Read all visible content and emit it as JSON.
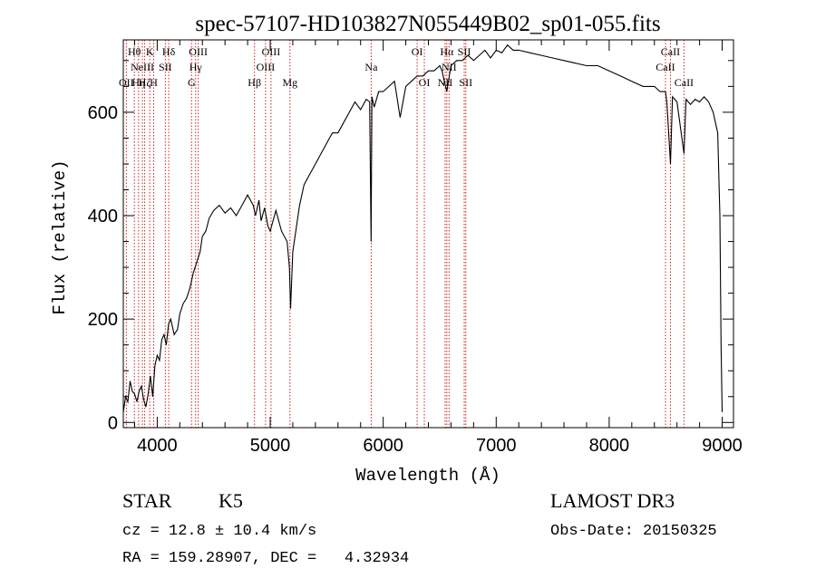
{
  "title": "spec-57107-HD103827N055449B02_sp01-055.fits",
  "info": {
    "object_class": "STAR",
    "subclass": "K5",
    "cz": "cz = 12.8 ± 10.4 km/s",
    "radec": "RA = 159.28907, DEC =   4.32934",
    "survey": "LAMOST DR3",
    "obs_date": "Obs-Date: 20150325"
  },
  "colors": {
    "line_marker": "#cc2222",
    "spectrum": "#000000",
    "axes": "#000000"
  },
  "chart_data": {
    "type": "line",
    "title": "spec-57107-HD103827N055449B02_sp01-055.fits",
    "xlabel": "Wavelength (Å)",
    "ylabel": "Flux (relative)",
    "xlim": [
      3700,
      9100
    ],
    "ylim": [
      -10,
      740
    ],
    "xticks": [
      4000,
      5000,
      6000,
      7000,
      8000,
      9000
    ],
    "yticks": [
      0,
      200,
      400,
      600
    ],
    "series": [
      {
        "x": [
          3700,
          3720,
          3740,
          3760,
          3780,
          3800,
          3820,
          3840,
          3860,
          3880,
          3900,
          3920,
          3940,
          3960,
          3980,
          4000,
          4020,
          4040,
          4060,
          4080,
          4100,
          4120,
          4150,
          4180,
          4200,
          4230,
          4260,
          4290,
          4320,
          4350,
          4380,
          4400,
          4430,
          4460,
          4500,
          4550,
          4600,
          4650,
          4700,
          4750,
          4800,
          4850,
          4870,
          4900,
          4920,
          4950,
          4980,
          5000,
          5050,
          5100,
          5150,
          5170,
          5180,
          5200,
          5220,
          5260,
          5300,
          5350,
          5400,
          5450,
          5500,
          5550,
          5600,
          5650,
          5700,
          5750,
          5800,
          5850,
          5880,
          5893,
          5900,
          5920,
          5960,
          6000,
          6050,
          6100,
          6150,
          6200,
          6250,
          6300,
          6350,
          6400,
          6450,
          6500,
          6520,
          6563,
          6600,
          6650,
          6700,
          6750,
          6800,
          6850,
          6900,
          6950,
          7000,
          7050,
          7100,
          7150,
          7200,
          7300,
          7400,
          7500,
          7600,
          7700,
          7800,
          7900,
          8000,
          8100,
          8200,
          8300,
          8400,
          8450,
          8498,
          8510,
          8542,
          8560,
          8600,
          8662,
          8680,
          8720,
          8760,
          8800,
          8840,
          8880,
          8920,
          8960,
          8980,
          8990,
          9000
        ],
        "y": [
          20,
          50,
          40,
          80,
          60,
          55,
          40,
          60,
          70,
          45,
          30,
          55,
          90,
          50,
          110,
          130,
          120,
          160,
          170,
          150,
          190,
          200,
          170,
          180,
          210,
          230,
          240,
          260,
          290,
          310,
          330,
          360,
          370,
          395,
          410,
          420,
          405,
          415,
          400,
          420,
          440,
          420,
          400,
          430,
          390,
          415,
          380,
          370,
          410,
          370,
          350,
          300,
          220,
          330,
          360,
          420,
          460,
          480,
          500,
          520,
          540,
          560,
          560,
          580,
          600,
          620,
          605,
          625,
          620,
          350,
          630,
          610,
          640,
          640,
          650,
          660,
          590,
          650,
          660,
          670,
          670,
          680,
          680,
          690,
          680,
          640,
          690,
          700,
          700,
          710,
          700,
          710,
          720,
          705,
          720,
          715,
          730,
          720,
          720,
          715,
          710,
          705,
          700,
          695,
          690,
          690,
          680,
          670,
          660,
          650,
          650,
          640,
          640,
          620,
          500,
          630,
          620,
          520,
          625,
          615,
          625,
          620,
          630,
          620,
          600,
          560,
          400,
          150,
          20
        ]
      }
    ],
    "line_markers": [
      {
        "x": 3727,
        "label": "OII",
        "row": 2
      },
      {
        "x": 3798,
        "label": "Hθ",
        "row": 0
      },
      {
        "x": 3835,
        "label": "Hη",
        "row": 2
      },
      {
        "x": 3869,
        "label": "NeIII",
        "row": 1
      },
      {
        "x": 3889,
        "label": "Hζ",
        "row": 2
      },
      {
        "x": 3934,
        "label": "K",
        "row": 0
      },
      {
        "x": 3969,
        "label": "H",
        "row": 2
      },
      {
        "x": 4072,
        "label": "SII",
        "row": 1
      },
      {
        "x": 4102,
        "label": "Hδ",
        "row": 0
      },
      {
        "x": 4304,
        "label": "G",
        "row": 2
      },
      {
        "x": 4340,
        "label": "Hγ",
        "row": 1
      },
      {
        "x": 4363,
        "label": "OIII",
        "row": 0
      },
      {
        "x": 4861,
        "label": "Hβ",
        "row": 2
      },
      {
        "x": 4959,
        "label": "OIII",
        "row": 1
      },
      {
        "x": 5007,
        "label": "OIII",
        "row": 0
      },
      {
        "x": 5175,
        "label": "Mg",
        "row": 2
      },
      {
        "x": 5894,
        "label": "Na",
        "row": 1
      },
      {
        "x": 6300,
        "label": "OI",
        "row": 0
      },
      {
        "x": 6364,
        "label": "OI",
        "row": 2
      },
      {
        "x": 6548,
        "label": "NII",
        "row": 2
      },
      {
        "x": 6563,
        "label": "Hα",
        "row": 0
      },
      {
        "x": 6583,
        "label": "NII",
        "row": 1
      },
      {
        "x": 6717,
        "label": "SII",
        "row": 0
      },
      {
        "x": 6731,
        "label": "SII",
        "row": 2
      },
      {
        "x": 8498,
        "label": "CaII",
        "row": 1
      },
      {
        "x": 8542,
        "label": "CaII",
        "row": 0
      },
      {
        "x": 8662,
        "label": "CaII",
        "row": 2
      }
    ]
  }
}
